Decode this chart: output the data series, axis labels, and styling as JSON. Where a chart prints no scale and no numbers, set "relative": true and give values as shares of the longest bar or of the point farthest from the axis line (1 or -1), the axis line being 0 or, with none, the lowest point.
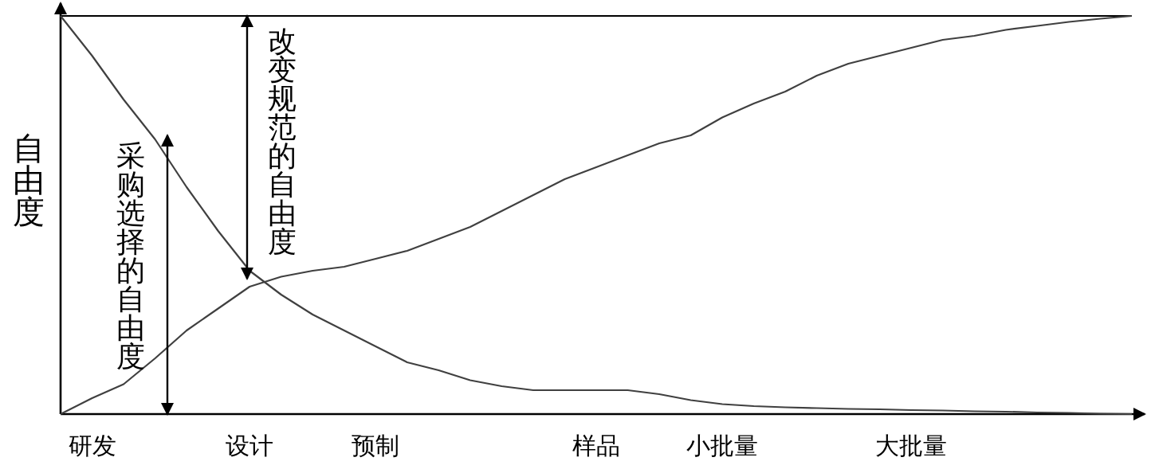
{
  "chart_data": {
    "type": "line",
    "relative": true,
    "ylabel": "自由度",
    "categories": [
      null,
      "研发",
      null,
      null,
      null,
      null,
      "设计",
      null,
      null,
      null,
      "预制",
      null,
      null,
      null,
      null,
      null,
      null,
      "样品",
      null,
      null,
      null,
      "小批量",
      null,
      null,
      null,
      null,
      null,
      "大批量",
      null,
      null,
      null,
      null,
      null,
      null,
      null
    ],
    "series": [
      {
        "color": "#404040",
        "values": [
          1,
          0.9,
          0.79,
          0.69,
          0.57,
          0.46,
          0.36,
          0.3,
          0.25,
          0.21,
          0.17,
          0.13,
          0.11,
          0.085,
          0.07,
          0.06,
          0.06,
          0.06,
          0.06,
          0.05,
          0.035,
          0.025,
          0.02,
          0.017,
          0.015,
          0.013,
          0.012,
          0.01,
          0.009,
          0.007,
          0.006,
          0.004,
          0.003,
          0.001,
          0
        ]
      },
      {
        "color": "#404040",
        "values": [
          0,
          0.04,
          0.075,
          0.14,
          0.21,
          0.265,
          0.32,
          0.345,
          0.36,
          0.37,
          0.39,
          0.41,
          0.44,
          0.47,
          0.51,
          0.55,
          0.59,
          0.62,
          0.65,
          0.68,
          0.7,
          0.745,
          0.78,
          0.81,
          0.85,
          0.88,
          0.9,
          0.92,
          0.94,
          0.95,
          0.965,
          0.975,
          0.985,
          0.993,
          1
        ]
      }
    ],
    "ref_lines": [
      {
        "axis": "y",
        "value": 1,
        "label": null
      }
    ],
    "annotations": [
      "采购选择的自由度",
      "改变规范的自由度"
    ],
    "marker": "none",
    "line_style": "solid"
  }
}
